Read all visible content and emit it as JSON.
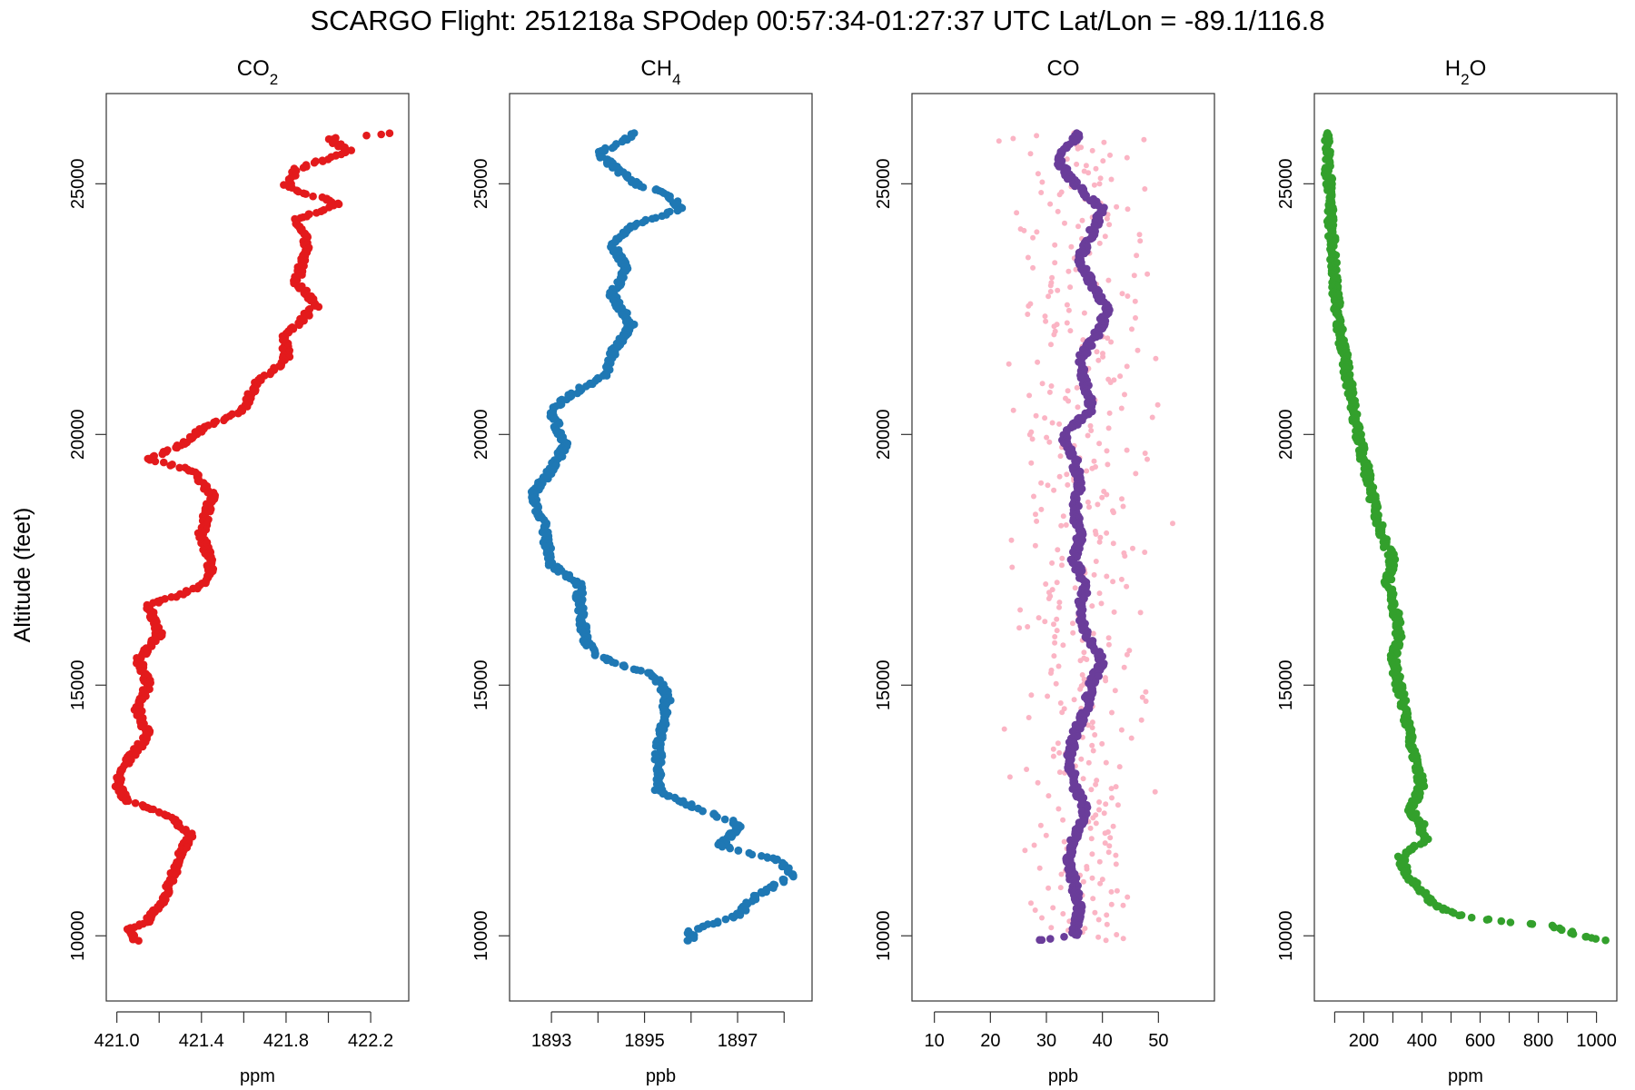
{
  "chart_data": {
    "type": "scatter",
    "title": "SCARGO Flight: 251218a  SPOdep  00:57:34-01:27:37 UTC  Lat/Lon = -89.1/116.8",
    "ylabel": "Altitude (feet)",
    "ylim": [
      8700,
      26800
    ],
    "yticks": [
      10000,
      15000,
      20000,
      25000
    ],
    "panels": [
      {
        "id": "co2",
        "title_main": "CO",
        "title_sub": "2",
        "xlabel": "ppm",
        "xlim": [
          420.95,
          422.38
        ],
        "xticks": [
          421.0,
          421.2,
          421.4,
          421.6,
          421.8,
          422.0,
          422.2
        ],
        "xtick_labels": [
          "421.0",
          "421.4",
          "421.8",
          "422.2"
        ],
        "series": [
          {
            "name": "CO2",
            "color": "#e31a1c",
            "profile": [
              [
                26000,
                422.3
              ],
              [
                25900,
                422.0
              ],
              [
                25650,
                422.1
              ],
              [
                25300,
                421.85
              ],
              [
                24950,
                421.8
              ],
              [
                24600,
                422.05
              ],
              [
                24300,
                421.85
              ],
              [
                23800,
                421.9
              ],
              [
                23000,
                421.85
              ],
              [
                22600,
                421.95
              ],
              [
                22000,
                421.8
              ],
              [
                21500,
                421.8
              ],
              [
                21000,
                421.65
              ],
              [
                20500,
                421.6
              ],
              [
                20100,
                421.4
              ],
              [
                19800,
                421.3
              ],
              [
                19500,
                421.15
              ],
              [
                19300,
                421.35
              ],
              [
                18800,
                421.45
              ],
              [
                18000,
                421.4
              ],
              [
                17300,
                421.45
              ],
              [
                17000,
                421.4
              ],
              [
                16800,
                421.3
              ],
              [
                16600,
                421.15
              ],
              [
                16000,
                421.2
              ],
              [
                15500,
                421.1
              ],
              [
                15000,
                421.15
              ],
              [
                14500,
                421.1
              ],
              [
                14000,
                421.15
              ],
              [
                13500,
                421.05
              ],
              [
                13000,
                421.0
              ],
              [
                12700,
                421.05
              ],
              [
                12400,
                421.25
              ],
              [
                12000,
                421.35
              ],
              [
                11600,
                421.3
              ],
              [
                11000,
                421.25
              ],
              [
                10600,
                421.2
              ],
              [
                10300,
                421.15
              ],
              [
                10100,
                421.05
              ],
              [
                9900,
                421.1
              ]
            ]
          }
        ]
      },
      {
        "id": "ch4",
        "title_main": "CH",
        "title_sub": "4",
        "xlabel": "ppb",
        "xlim": [
          1892.1,
          1898.6
        ],
        "xticks": [
          1893,
          1894,
          1895,
          1896,
          1897,
          1898
        ],
        "xtick_labels": [
          "1893",
          "1895",
          "1897"
        ],
        "series": [
          {
            "name": "CH4",
            "color": "#1f78b4",
            "profile": [
              [
                26000,
                1894.8
              ],
              [
                25600,
                1894.0
              ],
              [
                25000,
                1894.8
              ],
              [
                24800,
                1895.5
              ],
              [
                24500,
                1895.8
              ],
              [
                24200,
                1894.8
              ],
              [
                23800,
                1894.3
              ],
              [
                23300,
                1894.6
              ],
              [
                22800,
                1894.3
              ],
              [
                22200,
                1894.7
              ],
              [
                21600,
                1894.3
              ],
              [
                21200,
                1894.2
              ],
              [
                20900,
                1893.6
              ],
              [
                20500,
                1893.0
              ],
              [
                20200,
                1893.1
              ],
              [
                19800,
                1893.3
              ],
              [
                19300,
                1893.0
              ],
              [
                18800,
                1892.6
              ],
              [
                18300,
                1892.8
              ],
              [
                17800,
                1892.9
              ],
              [
                17400,
                1893.0
              ],
              [
                17000,
                1893.6
              ],
              [
                16600,
                1893.6
              ],
              [
                16000,
                1893.7
              ],
              [
                15600,
                1893.9
              ],
              [
                15200,
                1895.2
              ],
              [
                14800,
                1895.5
              ],
              [
                14300,
                1895.4
              ],
              [
                13800,
                1895.3
              ],
              [
                13300,
                1895.3
              ],
              [
                12900,
                1895.3
              ],
              [
                12600,
                1896.0
              ],
              [
                12200,
                1897.1
              ],
              [
                11800,
                1896.6
              ],
              [
                11500,
                1897.9
              ],
              [
                11200,
                1898.2
              ],
              [
                10800,
                1897.4
              ],
              [
                10400,
                1897.0
              ],
              [
                10100,
                1896.0
              ],
              [
                9900,
                1896.0
              ]
            ]
          }
        ]
      },
      {
        "id": "co",
        "title_main": "CO",
        "title_sub": "",
        "xlabel": "ppb",
        "xlim": [
          6,
          60
        ],
        "xticks": [
          10,
          20,
          30,
          40,
          50
        ],
        "xtick_labels": [
          "10",
          "20",
          "30",
          "40",
          "50"
        ],
        "series": [
          {
            "name": "CO background",
            "color": "#fbb4c4",
            "profile": [
              [
                26000,
                36
              ],
              [
                21000,
                36
              ],
              [
                16000,
                36
              ],
              [
                12000,
                36
              ],
              [
                9900,
                36
              ]
            ],
            "spread": 9
          },
          {
            "name": "CO",
            "color": "#6a3d9a",
            "profile": [
              [
                26000,
                36
              ],
              [
                25500,
                32
              ],
              [
                25000,
                35
              ],
              [
                24500,
                40
              ],
              [
                24000,
                38
              ],
              [
                23500,
                36
              ],
              [
                23000,
                38
              ],
              [
                22500,
                41
              ],
              [
                22000,
                39
              ],
              [
                21500,
                36
              ],
              [
                21000,
                37
              ],
              [
                20500,
                38
              ],
              [
                20000,
                33
              ],
              [
                19500,
                35
              ],
              [
                19000,
                36
              ],
              [
                18500,
                35
              ],
              [
                18000,
                36
              ],
              [
                17500,
                35
              ],
              [
                17000,
                37
              ],
              [
                16500,
                36
              ],
              [
                16000,
                37
              ],
              [
                15500,
                40
              ],
              [
                15000,
                38
              ],
              [
                14500,
                37
              ],
              [
                14000,
                35
              ],
              [
                13500,
                34
              ],
              [
                13000,
                35
              ],
              [
                12500,
                37
              ],
              [
                12000,
                35
              ],
              [
                11500,
                34
              ],
              [
                11000,
                35
              ],
              [
                10500,
                36
              ],
              [
                10000,
                35
              ],
              [
                9900,
                28
              ]
            ]
          }
        ]
      },
      {
        "id": "h2o",
        "title_main": "H",
        "title_sub": "2",
        "title_tail": "O",
        "xlabel": "ppm",
        "xlim": [
          30,
          1070
        ],
        "xticks": [
          100,
          200,
          300,
          400,
          500,
          600,
          700,
          800,
          900,
          1000
        ],
        "xtick_labels": [
          "200",
          "400",
          "600",
          "800",
          "1000"
        ],
        "series": [
          {
            "name": "H2O",
            "color": "#33a02c",
            "profile": [
              [
                26000,
                70
              ],
              [
                25000,
                80
              ],
              [
                24000,
                90
              ],
              [
                23000,
                100
              ],
              [
                22000,
                120
              ],
              [
                21000,
                150
              ],
              [
                20000,
                180
              ],
              [
                19000,
                220
              ],
              [
                18000,
                260
              ],
              [
                17500,
                300
              ],
              [
                17000,
                280
              ],
              [
                16500,
                310
              ],
              [
                16000,
                320
              ],
              [
                15500,
                300
              ],
              [
                15000,
                320
              ],
              [
                14500,
                340
              ],
              [
                14000,
                360
              ],
              [
                13500,
                380
              ],
              [
                13000,
                400
              ],
              [
                12500,
                360
              ],
              [
                12200,
                400
              ],
              [
                11900,
                410
              ],
              [
                11600,
                330
              ],
              [
                11300,
                340
              ],
              [
                11000,
                380
              ],
              [
                10700,
                430
              ],
              [
                10500,
                480
              ],
              [
                10400,
                540
              ],
              [
                10300,
                650
              ],
              [
                10200,
                850
              ],
              [
                10100,
                900
              ],
              [
                10000,
                950
              ],
              [
                9900,
                1050
              ]
            ]
          }
        ]
      }
    ]
  }
}
